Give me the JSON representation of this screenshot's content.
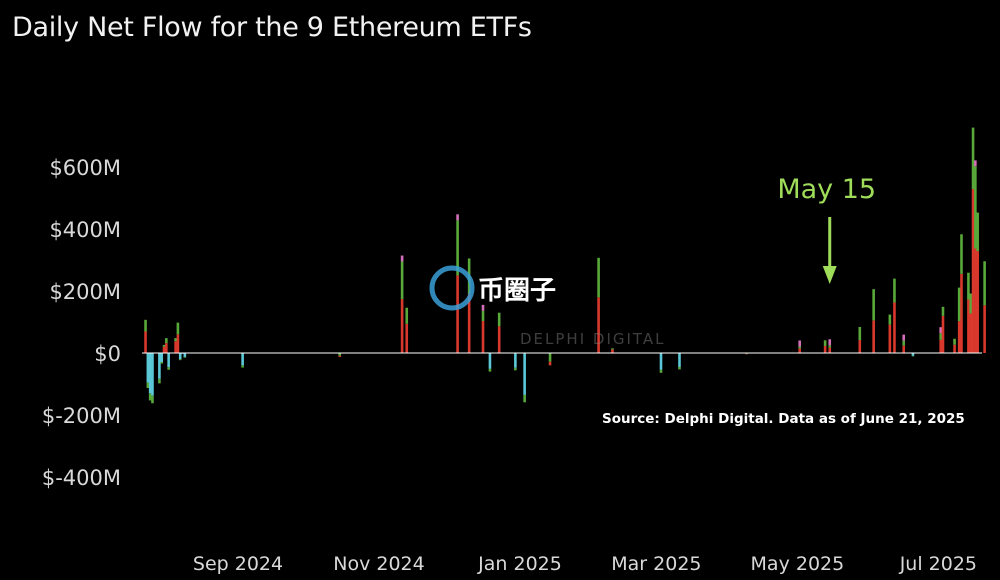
{
  "chart_data": {
    "type": "bar",
    "stacked": true,
    "title": "Daily Net Flow for the 9 Ethereum ETFs",
    "y_tick_labels": [
      "$600M",
      "$400M",
      "$200M",
      "$0",
      "$-200M",
      "$-400M"
    ],
    "y_tick_values": [
      600,
      400,
      200,
      0,
      -200,
      -400
    ],
    "x_tick_labels": [
      "Sep 2024",
      "Nov 2024",
      "Jan 2025",
      "Mar 2025",
      "May 2025",
      "Jul 2025"
    ],
    "x_tick_dates": [
      "2024-09-01",
      "2024-11-01",
      "2025-01-01",
      "2025-03-01",
      "2025-05-01",
      "2025-07-01"
    ],
    "ylim": [
      -500,
      750
    ],
    "unit": "USD millions",
    "grid": false,
    "legend": "none",
    "colors": {
      "inflow_main": "#d9382c",
      "inflow_secondary": "#59a83a",
      "outflow_main": "#5bc8d8",
      "outflow_secondary": "#59a83a",
      "accent_pink": "#d36fb8",
      "zero_line": "#ffffff",
      "callout": "#9fdc5a"
    },
    "annotation": {
      "label": "May 15",
      "date": "2025-05-15"
    },
    "source_note": "Source: Delphi Digital. Data as of June 21, 2025",
    "watermark": "币圈子",
    "watermark_faint": "DELPHI DIGITAL",
    "series_approx": [
      {
        "date": "2024-07-23",
        "net": 107
      },
      {
        "date": "2024-07-24",
        "net": -113
      },
      {
        "date": "2024-07-25",
        "net": -153
      },
      {
        "date": "2024-07-26",
        "net": -162
      },
      {
        "date": "2024-07-29",
        "net": -98
      },
      {
        "date": "2024-07-30",
        "net": -34
      },
      {
        "date": "2024-07-31",
        "net": 26
      },
      {
        "date": "2024-08-01",
        "net": 48
      },
      {
        "date": "2024-08-02",
        "net": -54
      },
      {
        "date": "2024-08-05",
        "net": 48
      },
      {
        "date": "2024-08-06",
        "net": 98
      },
      {
        "date": "2024-08-07",
        "net": -23
      },
      {
        "date": "2024-08-08",
        "net": -3
      },
      {
        "date": "2024-08-09",
        "net": -15
      },
      {
        "date": "2024-09-03",
        "net": -47
      },
      {
        "date": "2024-10-15",
        "net": -13
      },
      {
        "date": "2024-11-11",
        "net": 295
      },
      {
        "date": "2024-11-13",
        "net": 146
      },
      {
        "date": "2024-12-05",
        "net": 428
      },
      {
        "date": "2024-12-10",
        "net": 305
      },
      {
        "date": "2024-12-16",
        "net": 136
      },
      {
        "date": "2024-12-18",
        "net": 2
      },
      {
        "date": "2024-12-19",
        "net": -60
      },
      {
        "date": "2024-12-23",
        "net": 130
      },
      {
        "date": "2024-12-30",
        "net": -56
      },
      {
        "date": "2025-01-03",
        "net": -159
      },
      {
        "date": "2025-01-14",
        "net": -40
      },
      {
        "date": "2025-02-04",
        "net": 307
      },
      {
        "date": "2025-02-10",
        "net": 15
      },
      {
        "date": "2025-03-03",
        "net": -64
      },
      {
        "date": "2025-03-11",
        "net": -53
      },
      {
        "date": "2025-04-09",
        "net": -4
      },
      {
        "date": "2025-05-02",
        "net": 21
      },
      {
        "date": "2025-05-13",
        "net": 41
      },
      {
        "date": "2025-05-15",
        "net": 25
      },
      {
        "date": "2025-05-28",
        "net": 84
      },
      {
        "date": "2025-06-03",
        "net": 206
      },
      {
        "date": "2025-06-10",
        "net": 124
      },
      {
        "date": "2025-06-12",
        "net": 240
      },
      {
        "date": "2025-06-16",
        "net": 40
      },
      {
        "date": "2025-06-20",
        "net": -11
      },
      {
        "date": "2025-07-02",
        "net": 64
      },
      {
        "date": "2025-07-03",
        "net": 149
      },
      {
        "date": "2025-07-08",
        "net": 46
      },
      {
        "date": "2025-07-10",
        "net": 211
      },
      {
        "date": "2025-07-11",
        "net": 383
      },
      {
        "date": "2025-07-14",
        "net": 259
      },
      {
        "date": "2025-07-15",
        "net": 192
      },
      {
        "date": "2025-07-16",
        "net": 727
      },
      {
        "date": "2025-07-17",
        "net": 602
      },
      {
        "date": "2025-07-18",
        "net": 453
      },
      {
        "date": "2025-07-21",
        "net": 296
      }
    ]
  }
}
